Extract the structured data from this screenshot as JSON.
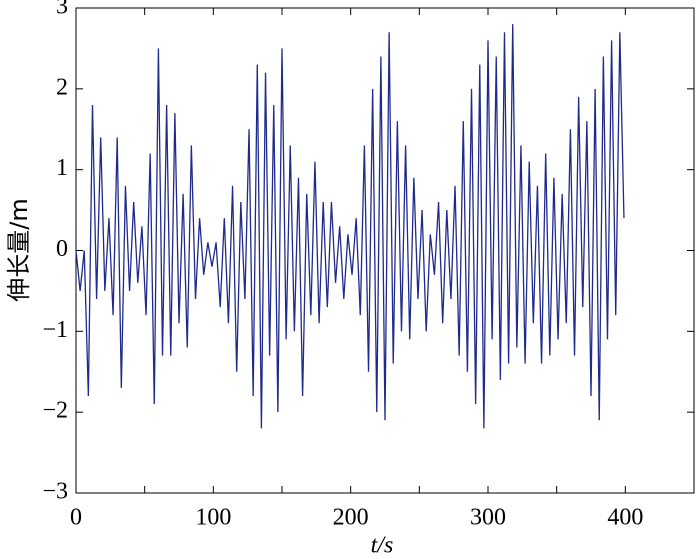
{
  "chart_data": {
    "type": "line",
    "x_label": "t/s",
    "y_label": "伸长量/m",
    "x": [
      0,
      3,
      6,
      9,
      12,
      15,
      18,
      21,
      24,
      27,
      30,
      33,
      36,
      39,
      42,
      45,
      48,
      51,
      54,
      57,
      60,
      63,
      66,
      69,
      72,
      75,
      78,
      81,
      84,
      87,
      90,
      93,
      96,
      99,
      102,
      105,
      108,
      111,
      114,
      117,
      120,
      123,
      126,
      129,
      132,
      135,
      138,
      141,
      144,
      147,
      150,
      153,
      156,
      159,
      162,
      165,
      168,
      171,
      174,
      177,
      180,
      183,
      186,
      189,
      192,
      195,
      198,
      201,
      204,
      207,
      210,
      213,
      216,
      219,
      222,
      225,
      228,
      231,
      234,
      237,
      240,
      243,
      246,
      249,
      252,
      255,
      258,
      261,
      264,
      267,
      270,
      273,
      276,
      279,
      282,
      285,
      288,
      291,
      294,
      297,
      300,
      303,
      306,
      309,
      312,
      315,
      318,
      321,
      324,
      327,
      330,
      333,
      336,
      339,
      342,
      345,
      348,
      351,
      354,
      357,
      360,
      363,
      366,
      369,
      372,
      375,
      378,
      381,
      384,
      387,
      390,
      393,
      396,
      399
    ],
    "series": [
      {
        "color": "#1f2a8c",
        "values": [
          0,
          -0.5,
          0,
          -1.8,
          1.8,
          -0.6,
          1.4,
          -0.5,
          0.4,
          -0.8,
          1.4,
          -1.7,
          0.8,
          -0.5,
          0.6,
          -0.4,
          0.3,
          -0.8,
          1.2,
          -1.9,
          2.5,
          -1.3,
          1.8,
          -1.3,
          1.7,
          -0.9,
          0.7,
          -1.2,
          1.3,
          -0.6,
          0.4,
          -0.3,
          0.1,
          -0.2,
          0.1,
          -0.7,
          0.4,
          -0.9,
          0.8,
          -1.5,
          0.6,
          -0.6,
          1.5,
          -1.8,
          2.3,
          -2.2,
          2.2,
          -1.3,
          1.8,
          -2.0,
          2.5,
          -1.1,
          1.3,
          -1.0,
          0.9,
          -1.8,
          0.7,
          -0.8,
          1.1,
          -0.9,
          0.6,
          -0.7,
          0.6,
          -0.4,
          0.3,
          -0.6,
          0.2,
          -0.3,
          0.4,
          -0.8,
          1.3,
          -1.5,
          2.0,
          -2.0,
          2.4,
          -2.1,
          2.7,
          -1.4,
          1.6,
          -1.0,
          1.3,
          -1.1,
          0.9,
          -0.6,
          0.5,
          -1.0,
          0.2,
          -0.3,
          0.6,
          -0.9,
          0.5,
          -0.6,
          0.8,
          -1.3,
          1.6,
          -1.5,
          2.0,
          -1.9,
          2.3,
          -2.2,
          2.6,
          -1.1,
          2.4,
          -1.6,
          2.7,
          -1.4,
          2.8,
          -1.2,
          1.3,
          -1.4,
          1.1,
          -0.9,
          0.8,
          -1.4,
          1.2,
          -1.3,
          0.9,
          -1.1,
          0.7,
          -0.9,
          1.5,
          -1.3,
          1.9,
          -0.7,
          1.6,
          -1.8,
          2.0,
          -2.1,
          2.4,
          -1.1,
          2.6,
          -0.8,
          2.7,
          0.4
        ]
      }
    ],
    "xlim": [
      0,
      450
    ],
    "xticks": [
      0,
      50,
      100,
      150,
      200,
      250,
      300,
      350,
      400,
      450
    ],
    "ylim": [
      -3,
      3
    ],
    "yticks": [
      {
        "value": -3,
        "label": "−3"
      },
      {
        "value": -2,
        "label": "−2"
      },
      {
        "value": -1,
        "label": "−1"
      },
      0,
      1,
      2,
      3
    ],
    "xtick_labels_shown": [
      0,
      100,
      200,
      300,
      400
    ],
    "grid": false
  }
}
